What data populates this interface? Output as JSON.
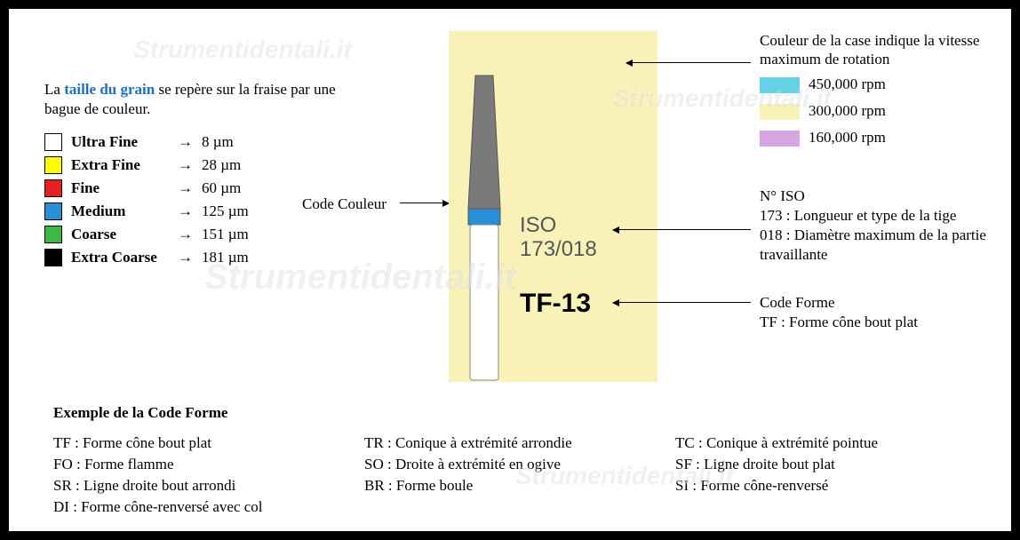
{
  "intro": {
    "prefix": "La ",
    "highlight": "taille du grain",
    "suffix": " se repère sur la fraise par une bague de couleur."
  },
  "grains": [
    {
      "name": "Ultra Fine",
      "size": "8 µm",
      "color": "#ffffff"
    },
    {
      "name": "Extra Fine",
      "size": "28 µm",
      "color": "#ffff00"
    },
    {
      "name": "Fine",
      "size": "60 µm",
      "color": "#e52121"
    },
    {
      "name": "Medium",
      "size": "125 µm",
      "color": "#2a8fd6"
    },
    {
      "name": "Coarse",
      "size": "151 µm",
      "color": "#3fb844"
    },
    {
      "name": "Extra Coarse",
      "size": "181 µm",
      "color": "#000000"
    }
  ],
  "callouts": {
    "codeCouleur": "Code Couleur",
    "caseColor": "Couleur de la case indique la vitesse maximum de rotation",
    "iso": {
      "title": "N° ISO",
      "line1": "173 : Longueur et type de la tige",
      "line2": "018 : Diamètre maximum de la partie travaillante"
    },
    "codeForme": {
      "title": "Code Forme",
      "line1": "TF : Forme cône bout plat"
    }
  },
  "rpm": [
    {
      "color": "#63d2e7",
      "label": "450,000 rpm"
    },
    {
      "color": "#f8f2b8",
      "label": "300,000 rpm"
    },
    {
      "color": "#d8a6e5",
      "label": "160,000 rpm"
    }
  ],
  "bur": {
    "background": "#f8f2b8",
    "headColor": "#7a7a7a",
    "bandColor": "#2a8fd6",
    "shankColor": "#ffffff",
    "isoLabel": "ISO",
    "isoCode": "173/018",
    "formCode": "TF-13"
  },
  "example": {
    "title": "Exemple de la Code Forme",
    "rows": [
      [
        "TF : Forme cône bout plat",
        "TR : Conique à extrémité arrondie",
        "TC : Conique à extrémité pointue"
      ],
      [
        "FO : Forme flamme",
        "SO : Droite à extrémité en ogive",
        "SF : Ligne droite bout plat"
      ],
      [
        "SR : Ligne droite bout arrondi",
        "BR : Forme boule",
        "SI : Forme cône-renversé"
      ],
      [
        "DI : Forme cône-renversé avec col",
        "",
        ""
      ]
    ]
  },
  "watermark": "Strumentidentali.it"
}
